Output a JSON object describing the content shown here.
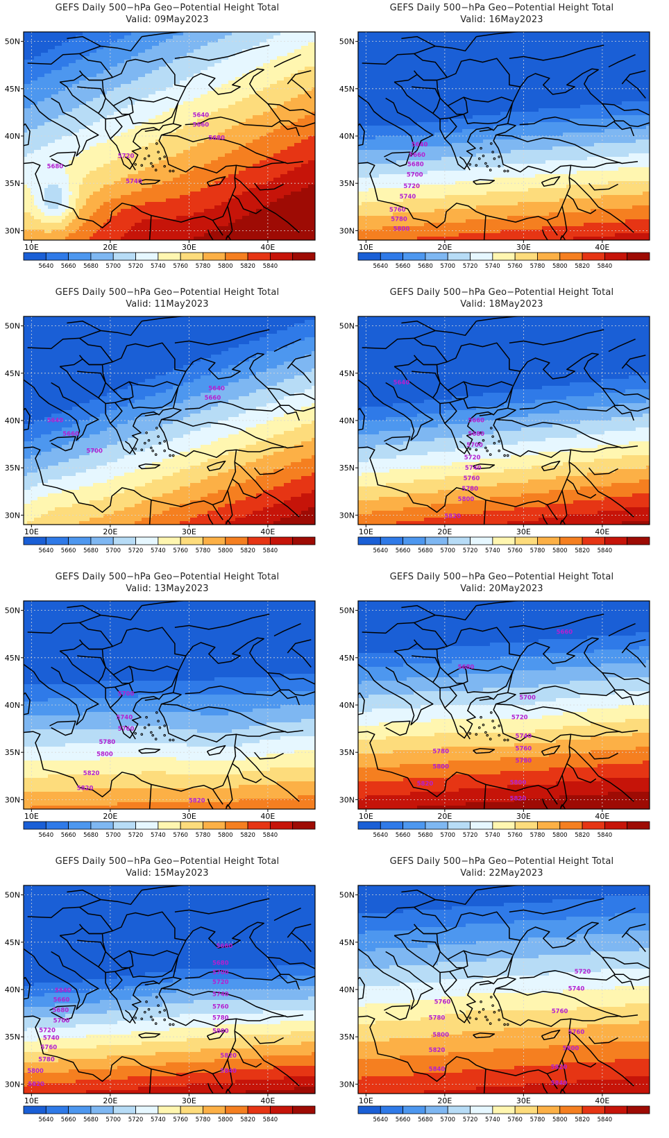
{
  "axes": {
    "lat_labels": [
      "50N",
      "45N",
      "40N",
      "35N",
      "30N"
    ],
    "lat_values": [
      50,
      45,
      40,
      35,
      30
    ],
    "lon_labels": [
      "10E",
      "20E",
      "30E",
      "40E"
    ],
    "lon_values": [
      10,
      20,
      30,
      40
    ],
    "lon_range": [
      9,
      46
    ],
    "lat_range": [
      29,
      51
    ],
    "grid": true
  },
  "colorbar": {
    "labels": [
      "5640",
      "5660",
      "5680",
      "5700",
      "5720",
      "5740",
      "5760",
      "5780",
      "5800",
      "5820",
      "5840"
    ],
    "colors": [
      "#1a5fd6",
      "#2f7ae8",
      "#4d97ef",
      "#7eb7f2",
      "#b7dcf6",
      "#e6f7ff",
      "#fff6b0",
      "#fddc7c",
      "#fcb046",
      "#f57f20",
      "#e63514",
      "#c61409",
      "#9e0b04"
    ]
  },
  "contour_color": "#b420d0",
  "coast_color": "#000000",
  "panels": [
    {
      "title": "GEFS Daily 500−hPa Geo−Potential Height Total",
      "valid": "Valid: 09May2023",
      "contour_labels": [
        {
          "text": "5640",
          "lon": 31.5,
          "lat": 42.0
        },
        {
          "text": "5660",
          "lon": 31.5,
          "lat": 41.0
        },
        {
          "text": "5680",
          "lon": 33.5,
          "lat": 39.6
        },
        {
          "text": "5720",
          "lon": 22.0,
          "lat": 37.7
        },
        {
          "text": "5740",
          "lon": 23.0,
          "lat": 35.0
        },
        {
          "text": "5680",
          "lon": 13.0,
          "lat": 36.6
        }
      ]
    },
    {
      "title": "GEFS Daily 500−hPa Geo−Potential Height Total",
      "valid": "Valid: 16May2023",
      "contour_labels": [
        {
          "text": "5640",
          "lon": 16.8,
          "lat": 38.9
        },
        {
          "text": "5660",
          "lon": 16.5,
          "lat": 37.8
        },
        {
          "text": "5680",
          "lon": 16.3,
          "lat": 36.8
        },
        {
          "text": "5700",
          "lon": 16.2,
          "lat": 35.7
        },
        {
          "text": "5720",
          "lon": 15.8,
          "lat": 34.5
        },
        {
          "text": "5740",
          "lon": 15.3,
          "lat": 33.4
        },
        {
          "text": "5760",
          "lon": 14.0,
          "lat": 32.0
        },
        {
          "text": "5780",
          "lon": 14.2,
          "lat": 31.0
        },
        {
          "text": "5800",
          "lon": 14.5,
          "lat": 30.0
        }
      ]
    },
    {
      "title": "GEFS Daily 500−hPa Geo−Potential Height Total",
      "valid": "Valid: 11May2023",
      "contour_labels": [
        {
          "text": "5640",
          "lon": 33.5,
          "lat": 43.2
        },
        {
          "text": "5660",
          "lon": 33.0,
          "lat": 42.2
        },
        {
          "text": "5640",
          "lon": 13.0,
          "lat": 39.8
        },
        {
          "text": "5660",
          "lon": 15.0,
          "lat": 38.4
        },
        {
          "text": "5700",
          "lon": 18.0,
          "lat": 36.6
        }
      ]
    },
    {
      "title": "GEFS Daily 500−hPa Geo−Potential Height Total",
      "valid": "Valid: 18May2023",
      "contour_labels": [
        {
          "text": "5640",
          "lon": 14.5,
          "lat": 43.8
        },
        {
          "text": "5660",
          "lon": 24.0,
          "lat": 39.8
        },
        {
          "text": "5680",
          "lon": 24.0,
          "lat": 38.4
        },
        {
          "text": "5700",
          "lon": 23.8,
          "lat": 37.2
        },
        {
          "text": "5720",
          "lon": 23.5,
          "lat": 35.9
        },
        {
          "text": "5740",
          "lon": 23.6,
          "lat": 34.8
        },
        {
          "text": "5760",
          "lon": 23.4,
          "lat": 33.7
        },
        {
          "text": "5780",
          "lon": 23.2,
          "lat": 32.6
        },
        {
          "text": "5800",
          "lon": 22.7,
          "lat": 31.5
        },
        {
          "text": "5820",
          "lon": 21.0,
          "lat": 29.7
        }
      ]
    },
    {
      "title": "GEFS Daily 500−hPa Geo−Potential Height Total",
      "valid": "Valid: 13May2023",
      "contour_labels": [
        {
          "text": "5700",
          "lon": 22.0,
          "lat": 41.0
        },
        {
          "text": "5740",
          "lon": 21.8,
          "lat": 38.5
        },
        {
          "text": "5760",
          "lon": 22.0,
          "lat": 37.3
        },
        {
          "text": "5780",
          "lon": 19.6,
          "lat": 35.9
        },
        {
          "text": "5800",
          "lon": 19.3,
          "lat": 34.6
        },
        {
          "text": "5820",
          "lon": 17.6,
          "lat": 32.6
        },
        {
          "text": "5820",
          "lon": 16.8,
          "lat": 31.0
        },
        {
          "text": "5820",
          "lon": 31.0,
          "lat": 29.7
        }
      ]
    },
    {
      "title": "GEFS Daily 500−hPa Geo−Potential Height Total",
      "valid": "Valid: 20May2023",
      "contour_labels": [
        {
          "text": "5660",
          "lon": 35.2,
          "lat": 47.5
        },
        {
          "text": "5680",
          "lon": 22.7,
          "lat": 43.8
        },
        {
          "text": "5700",
          "lon": 30.5,
          "lat": 40.6
        },
        {
          "text": "5720",
          "lon": 29.5,
          "lat": 38.5
        },
        {
          "text": "5740",
          "lon": 30.0,
          "lat": 36.5
        },
        {
          "text": "5760",
          "lon": 30.0,
          "lat": 35.2
        },
        {
          "text": "5780",
          "lon": 19.5,
          "lat": 34.9
        },
        {
          "text": "5800",
          "lon": 19.5,
          "lat": 33.3
        },
        {
          "text": "5780",
          "lon": 30.0,
          "lat": 33.9
        },
        {
          "text": "5800",
          "lon": 29.3,
          "lat": 31.6
        },
        {
          "text": "5820",
          "lon": 29.3,
          "lat": 29.9
        },
        {
          "text": "5820",
          "lon": 17.5,
          "lat": 31.5
        }
      ]
    },
    {
      "title": "GEFS Daily 500−hPa Geo−Potential Height Total",
      "valid": "Valid: 15May2023",
      "contour_labels": [
        {
          "text": "5640",
          "lon": 14.0,
          "lat": 39.7
        },
        {
          "text": "5660",
          "lon": 13.8,
          "lat": 38.7
        },
        {
          "text": "5680",
          "lon": 13.7,
          "lat": 37.6
        },
        {
          "text": "5700",
          "lon": 13.8,
          "lat": 36.5
        },
        {
          "text": "5720",
          "lon": 12.0,
          "lat": 35.5
        },
        {
          "text": "5740",
          "lon": 12.5,
          "lat": 34.7
        },
        {
          "text": "5760",
          "lon": 12.2,
          "lat": 33.7
        },
        {
          "text": "5780",
          "lon": 11.9,
          "lat": 32.4
        },
        {
          "text": "5800",
          "lon": 10.5,
          "lat": 31.2
        },
        {
          "text": "5820",
          "lon": 10.6,
          "lat": 29.8
        },
        {
          "text": "5660",
          "lon": 34.5,
          "lat": 44.4
        },
        {
          "text": "5680",
          "lon": 34.0,
          "lat": 42.6
        },
        {
          "text": "5700",
          "lon": 34.0,
          "lat": 41.6
        },
        {
          "text": "5720",
          "lon": 34.0,
          "lat": 40.6
        },
        {
          "text": "5740",
          "lon": 34.0,
          "lat": 39.3
        },
        {
          "text": "5760",
          "lon": 34.0,
          "lat": 38.0
        },
        {
          "text": "5780",
          "lon": 34.0,
          "lat": 36.8
        },
        {
          "text": "5800",
          "lon": 34.0,
          "lat": 35.4
        },
        {
          "text": "5820",
          "lon": 35.0,
          "lat": 32.8
        },
        {
          "text": "5840",
          "lon": 35.0,
          "lat": 31.2
        }
      ]
    },
    {
      "title": "GEFS Daily 500−hPa Geo−Potential Height Total",
      "valid": "Valid: 22May2023",
      "contour_labels": [
        {
          "text": "5720",
          "lon": 37.5,
          "lat": 41.7
        },
        {
          "text": "5740",
          "lon": 36.7,
          "lat": 39.9
        },
        {
          "text": "5760",
          "lon": 19.7,
          "lat": 38.5
        },
        {
          "text": "5760",
          "lon": 34.6,
          "lat": 37.5
        },
        {
          "text": "5780",
          "lon": 19.0,
          "lat": 36.8
        },
        {
          "text": "5760",
          "lon": 36.7,
          "lat": 35.3
        },
        {
          "text": "5800",
          "lon": 19.5,
          "lat": 35.0
        },
        {
          "text": "5800",
          "lon": 36.0,
          "lat": 33.6
        },
        {
          "text": "5820",
          "lon": 19.0,
          "lat": 33.4
        },
        {
          "text": "5820",
          "lon": 34.5,
          "lat": 31.6
        },
        {
          "text": "5840",
          "lon": 19.0,
          "lat": 31.4
        },
        {
          "text": "5840",
          "lon": 34.5,
          "lat": 29.9
        }
      ]
    }
  ]
}
